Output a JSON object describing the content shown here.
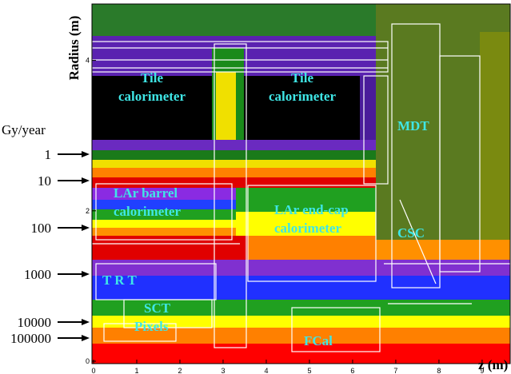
{
  "chart_data": {
    "type": "heatmap",
    "y_label": "Radius (m)",
    "x_label": "z (m)",
    "xlim": [
      0,
      9.65
    ],
    "xticks": [
      0,
      1,
      2,
      3,
      4,
      5,
      6,
      7,
      8,
      9
    ],
    "ylim": [
      0,
      4.75
    ],
    "yticks": [
      0,
      2,
      4
    ],
    "dose_unit": "Gy/year",
    "dose_levels": [
      1,
      10,
      100,
      1000,
      10000,
      100000
    ],
    "annotations": [
      [
        "Tile",
        "calorimeter"
      ],
      [
        "Tile",
        "calorimeter"
      ],
      [
        "MDT"
      ],
      [
        "LAr barrel",
        "calorimeter"
      ],
      [
        "LAr end-cap",
        "calorimeter"
      ],
      [
        "CSC"
      ],
      [
        "T    R    T"
      ],
      [
        "SCT"
      ],
      [
        "Pixels"
      ],
      [
        "FCal"
      ]
    ]
  }
}
